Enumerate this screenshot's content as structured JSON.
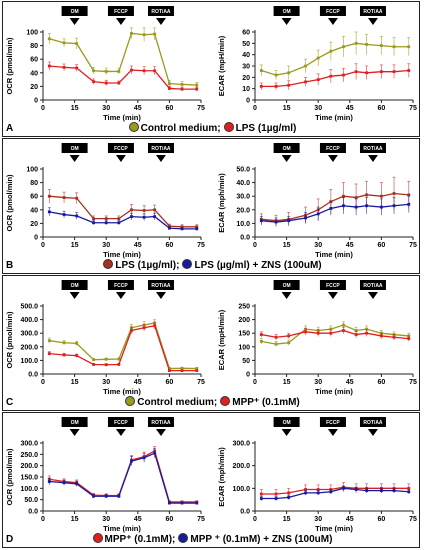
{
  "panels": [
    {
      "letter": "A",
      "legend": [
        {
          "label": "Control medium;",
          "color": "#9a9a1c"
        },
        {
          "label": "LPS (1µg/ml)",
          "color": "#e02020"
        }
      ]
    },
    {
      "letter": "B",
      "legend": [
        {
          "label": "LPS (1µg/ml);",
          "color": "#a83022"
        },
        {
          "label": "LPS (µg/ml) + ZNS (100uM)",
          "color": "#1a1a9e"
        }
      ]
    },
    {
      "letter": "C",
      "legend": [
        {
          "label": "Control medium;",
          "color": "#9a9a1c"
        },
        {
          "label": "MPP⁺ (0.1mM)",
          "color": "#e02020"
        }
      ]
    },
    {
      "letter": "D",
      "legend": [
        {
          "label": "MPP⁺ (0.1mM);",
          "color": "#e02020"
        },
        {
          "label": "MPP ⁺ (0.1mM) + ZNS (100uM)",
          "color": "#1a1a9e"
        }
      ]
    }
  ],
  "chart_data": [
    {
      "type": "line",
      "title": "",
      "xlabel": "Time (min)",
      "ylabel": "OCR (pmol/min)",
      "xlim": [
        0,
        75
      ],
      "xticks": [
        0,
        15,
        30,
        45,
        60,
        75
      ],
      "ylim": [
        0,
        100
      ],
      "yticks": [
        0,
        20,
        40,
        60,
        80,
        100
      ],
      "ytick_labels": [
        "0",
        "20",
        "40",
        "60",
        "80",
        "100"
      ],
      "injections": [
        {
          "label": "OM",
          "x": 15
        },
        {
          "label": "FCCP",
          "x": 37
        },
        {
          "label": "ROT/AA",
          "x": 56
        }
      ],
      "x": [
        3,
        10,
        16,
        24,
        30,
        36,
        42,
        48,
        53,
        60,
        66,
        73
      ],
      "series": [
        {
          "color": "#9a9a1c",
          "values": [
            90,
            84,
            83,
            43,
            42,
            42,
            98,
            96,
            97,
            24,
            23,
            22
          ],
          "errors": [
            8,
            6,
            8,
            5,
            5,
            4,
            8,
            10,
            9,
            5,
            4,
            4
          ]
        },
        {
          "color": "#e02020",
          "values": [
            50,
            48,
            47,
            27,
            25,
            25,
            44,
            43,
            43,
            17,
            16,
            16
          ],
          "errors": [
            6,
            5,
            5,
            4,
            4,
            3,
            6,
            6,
            6,
            3,
            3,
            3
          ]
        }
      ]
    },
    {
      "type": "line",
      "title": "",
      "xlabel": "Time (min)",
      "ylabel": "ECAR (mpH/min)",
      "xlim": [
        0,
        75
      ],
      "xticks": [
        0,
        15,
        30,
        45,
        60,
        75
      ],
      "ylim": [
        0,
        60
      ],
      "yticks": [
        0,
        10,
        20,
        30,
        40,
        50,
        60
      ],
      "ytick_labels": [
        "0",
        "10",
        "20",
        "30",
        "40",
        "50",
        "60"
      ],
      "injections": [
        {
          "label": "OM",
          "x": 15
        },
        {
          "label": "FCCP",
          "x": 37
        },
        {
          "label": "ROT/AA",
          "x": 56
        }
      ],
      "x": [
        3,
        10,
        16,
        24,
        30,
        36,
        42,
        48,
        53,
        60,
        66,
        73
      ],
      "series": [
        {
          "color": "#9a9a1c",
          "values": [
            26,
            22,
            24,
            30,
            37,
            43,
            47,
            50,
            49,
            48,
            47,
            47
          ],
          "errors": [
            5,
            4,
            6,
            6,
            7,
            8,
            9,
            10,
            9,
            8,
            8,
            8
          ]
        },
        {
          "color": "#e02020",
          "values": [
            12,
            12,
            13,
            16,
            18,
            21,
            22,
            25,
            24,
            25,
            25,
            26
          ],
          "errors": [
            3,
            3,
            4,
            4,
            5,
            6,
            6,
            7,
            6,
            6,
            6,
            6
          ]
        }
      ]
    },
    {
      "type": "line",
      "title": "",
      "xlabel": "Time (min)",
      "ylabel": "OCR (pmol/min)",
      "xlim": [
        0,
        75
      ],
      "xticks": [
        0,
        15,
        30,
        45,
        60,
        75
      ],
      "ylim": [
        0,
        100
      ],
      "yticks": [
        0,
        20,
        40,
        60,
        80,
        100
      ],
      "ytick_labels": [
        "0",
        "20",
        "40",
        "60",
        "80",
        "100"
      ],
      "injections": [
        {
          "label": "OM",
          "x": 15
        },
        {
          "label": "FCCP",
          "x": 37
        },
        {
          "label": "ROT/AA",
          "x": 56
        }
      ],
      "x": [
        3,
        10,
        16,
        24,
        30,
        36,
        42,
        48,
        53,
        60,
        66,
        73
      ],
      "series": [
        {
          "color": "#a83022",
          "values": [
            60,
            58,
            57,
            27,
            27,
            27,
            40,
            39,
            40,
            16,
            15,
            15
          ],
          "errors": [
            10,
            8,
            8,
            4,
            4,
            4,
            8,
            7,
            7,
            3,
            3,
            3
          ]
        },
        {
          "color": "#1a1a9e",
          "values": [
            37,
            33,
            31,
            21,
            21,
            21,
            30,
            29,
            30,
            13,
            12,
            12
          ],
          "errors": [
            6,
            5,
            5,
            3,
            3,
            3,
            5,
            5,
            5,
            2,
            2,
            2
          ]
        }
      ]
    },
    {
      "type": "line",
      "title": "",
      "xlabel": "Time (min)",
      "ylabel": "ECAR (mph/min)",
      "xlim": [
        0,
        75
      ],
      "xticks": [
        0,
        15,
        30,
        45,
        60,
        75
      ],
      "ylim": [
        0,
        50
      ],
      "yticks": [
        0,
        10,
        20,
        30,
        40,
        50
      ],
      "ytick_labels": [
        "0.0",
        "10.0",
        "20.0",
        "30.0",
        "40.0",
        "50.0"
      ],
      "injections": [
        {
          "label": "OM",
          "x": 15
        },
        {
          "label": "FCCP",
          "x": 37
        },
        {
          "label": "ROT/AA",
          "x": 56
        }
      ],
      "x": [
        3,
        10,
        16,
        24,
        30,
        36,
        42,
        48,
        53,
        60,
        66,
        73
      ],
      "series": [
        {
          "color": "#a83022",
          "values": [
            13,
            12,
            13,
            16,
            20,
            26,
            30,
            29,
            31,
            30,
            32,
            31
          ],
          "errors": [
            4,
            4,
            5,
            6,
            8,
            9,
            10,
            10,
            10,
            10,
            12,
            10
          ]
        },
        {
          "color": "#1a1a9e",
          "values": [
            12,
            11,
            12,
            14,
            17,
            21,
            23,
            22,
            23,
            22,
            23,
            24
          ],
          "errors": [
            3,
            3,
            3,
            4,
            5,
            5,
            6,
            6,
            6,
            6,
            6,
            6
          ]
        }
      ]
    },
    {
      "type": "line",
      "title": "",
      "xlabel": "Time (min)",
      "ylabel": "OCR (pmol/min)",
      "xlim": [
        0,
        75
      ],
      "xticks": [
        0,
        15,
        30,
        45,
        60,
        75
      ],
      "ylim": [
        0,
        500
      ],
      "yticks": [
        0,
        100,
        200,
        300,
        400,
        500
      ],
      "ytick_labels": [
        "0.0",
        "100.0",
        "200.0",
        "300.0",
        "400.0",
        "500.0"
      ],
      "injections": [
        {
          "label": "OM",
          "x": 15
        },
        {
          "label": "FCCP",
          "x": 37
        },
        {
          "label": "ROT/AA",
          "x": 56
        }
      ],
      "x": [
        3,
        10,
        16,
        24,
        30,
        36,
        42,
        48,
        53,
        60,
        66,
        73
      ],
      "series": [
        {
          "color": "#9a9a1c",
          "values": [
            245,
            230,
            225,
            105,
            108,
            110,
            340,
            360,
            375,
            40,
            42,
            40
          ],
          "errors": [
            20,
            15,
            15,
            10,
            10,
            10,
            25,
            25,
            25,
            8,
            8,
            8
          ]
        },
        {
          "color": "#e02020",
          "values": [
            150,
            140,
            135,
            70,
            68,
            70,
            320,
            340,
            355,
            25,
            25,
            25
          ],
          "errors": [
            15,
            12,
            12,
            8,
            8,
            8,
            25,
            25,
            25,
            5,
            5,
            5
          ]
        }
      ]
    },
    {
      "type": "line",
      "title": "",
      "xlabel": "Time (min)",
      "ylabel": "ECAR (mpH/min)",
      "xlim": [
        0,
        75
      ],
      "xticks": [
        0,
        15,
        30,
        45,
        60,
        75
      ],
      "ylim": [
        0,
        250
      ],
      "yticks": [
        0,
        50,
        100,
        150,
        200,
        250
      ],
      "ytick_labels": [
        "0",
        "50",
        "100",
        "150",
        "200",
        "250"
      ],
      "injections": [
        {
          "label": "OM",
          "x": 15
        },
        {
          "label": "FCCP",
          "x": 37
        },
        {
          "label": "ROT/AA",
          "x": 56
        }
      ],
      "x": [
        3,
        10,
        16,
        24,
        30,
        36,
        42,
        48,
        53,
        60,
        66,
        73
      ],
      "series": [
        {
          "color": "#9a9a1c",
          "values": [
            120,
            110,
            115,
            165,
            160,
            165,
            180,
            160,
            165,
            150,
            145,
            140
          ],
          "errors": [
            10,
            10,
            10,
            12,
            12,
            12,
            12,
            12,
            12,
            10,
            10,
            10
          ]
        },
        {
          "color": "#e02020",
          "values": [
            145,
            135,
            140,
            155,
            150,
            150,
            160,
            145,
            150,
            140,
            135,
            130
          ],
          "errors": [
            10,
            10,
            10,
            12,
            12,
            12,
            12,
            12,
            12,
            10,
            10,
            10
          ]
        }
      ]
    },
    {
      "type": "line",
      "title": "",
      "xlabel": "Time (min)",
      "ylabel": "OCR (pmol/min)",
      "xlim": [
        0,
        75
      ],
      "xticks": [
        0,
        15,
        30,
        45,
        60,
        75
      ],
      "ylim": [
        0,
        300
      ],
      "yticks": [
        0,
        50,
        100,
        150,
        200,
        250,
        300
      ],
      "ytick_labels": [
        "0.0",
        "50.0",
        "100.0",
        "150.0",
        "200.0",
        "250.0",
        "300.0"
      ],
      "injections": [
        {
          "label": "OM",
          "x": 15
        },
        {
          "label": "FCCP",
          "x": 37
        },
        {
          "label": "ROT/AA",
          "x": 56
        }
      ],
      "x": [
        3,
        10,
        16,
        24,
        30,
        36,
        42,
        48,
        53,
        60,
        66,
        73
      ],
      "series": [
        {
          "color": "#e02020",
          "values": [
            140,
            130,
            125,
            70,
            68,
            68,
            225,
            240,
            265,
            40,
            40,
            40
          ],
          "errors": [
            15,
            12,
            12,
            8,
            8,
            8,
            20,
            20,
            20,
            5,
            5,
            5
          ]
        },
        {
          "color": "#1a1a9e",
          "values": [
            130,
            125,
            120,
            65,
            65,
            65,
            220,
            235,
            255,
            35,
            35,
            35
          ],
          "errors": [
            15,
            12,
            12,
            8,
            8,
            8,
            20,
            20,
            20,
            5,
            5,
            5
          ]
        }
      ]
    },
    {
      "type": "line",
      "title": "",
      "xlabel": "Time (min)",
      "ylabel": "ECAR (mph/min)",
      "xlim": [
        0,
        75
      ],
      "xticks": [
        0,
        15,
        30,
        45,
        60,
        75
      ],
      "ylim": [
        0,
        300
      ],
      "yticks": [
        0,
        100,
        200,
        300
      ],
      "ytick_labels": [
        "0.0",
        "100.0",
        "200.0",
        "300.0"
      ],
      "injections": [
        {
          "label": "OM",
          "x": 15
        },
        {
          "label": "FCCP",
          "x": 37
        },
        {
          "label": "ROT/AA",
          "x": 56
        }
      ],
      "x": [
        3,
        10,
        16,
        24,
        30,
        36,
        42,
        48,
        53,
        60,
        66,
        73
      ],
      "series": [
        {
          "color": "#e02020",
          "values": [
            75,
            75,
            80,
            95,
            95,
            95,
            105,
            100,
            100,
            100,
            100,
            100
          ],
          "errors": [
            20,
            20,
            20,
            20,
            20,
            20,
            20,
            20,
            20,
            20,
            20,
            20
          ]
        },
        {
          "color": "#1a1a9e",
          "values": [
            55,
            55,
            60,
            80,
            80,
            85,
            100,
            95,
            90,
            90,
            90,
            85
          ],
          "errors": [
            10,
            10,
            10,
            10,
            10,
            10,
            10,
            10,
            10,
            10,
            10,
            10
          ]
        }
      ]
    }
  ]
}
